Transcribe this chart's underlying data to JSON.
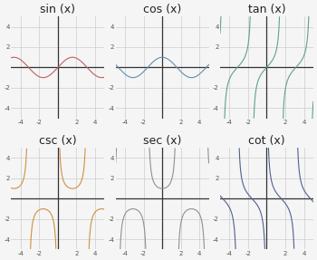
{
  "panels": [
    {
      "title": "sin (x)",
      "func": "sin",
      "color": "#c06060",
      "xlim": [
        -5,
        5
      ],
      "ylim": [
        -5,
        5
      ]
    },
    {
      "title": "cos (x)",
      "func": "cos",
      "color": "#6090b0",
      "xlim": [
        -5,
        5
      ],
      "ylim": [
        -5,
        5
      ]
    },
    {
      "title": "tan (x)",
      "func": "tan",
      "color": "#60a090",
      "xlim": [
        -5,
        5
      ],
      "ylim": [
        -5,
        5
      ]
    },
    {
      "title": "csc (x)",
      "func": "csc",
      "color": "#d09040",
      "xlim": [
        -5,
        5
      ],
      "ylim": [
        -5,
        5
      ]
    },
    {
      "title": "sec (x)",
      "func": "sec",
      "color": "#909090",
      "xlim": [
        -5,
        5
      ],
      "ylim": [
        -5,
        5
      ]
    },
    {
      "title": "cot (x)",
      "func": "cot",
      "color": "#506090",
      "xlim": [
        -5,
        5
      ],
      "ylim": [
        -5,
        5
      ]
    }
  ],
  "tick_values": [
    -4,
    -2,
    0,
    2,
    4
  ],
  "background_color": "#f5f5f5",
  "grid_color": "#cccccc",
  "axis_color": "#333333",
  "title_fontsize": 9,
  "clip_val": 5
}
